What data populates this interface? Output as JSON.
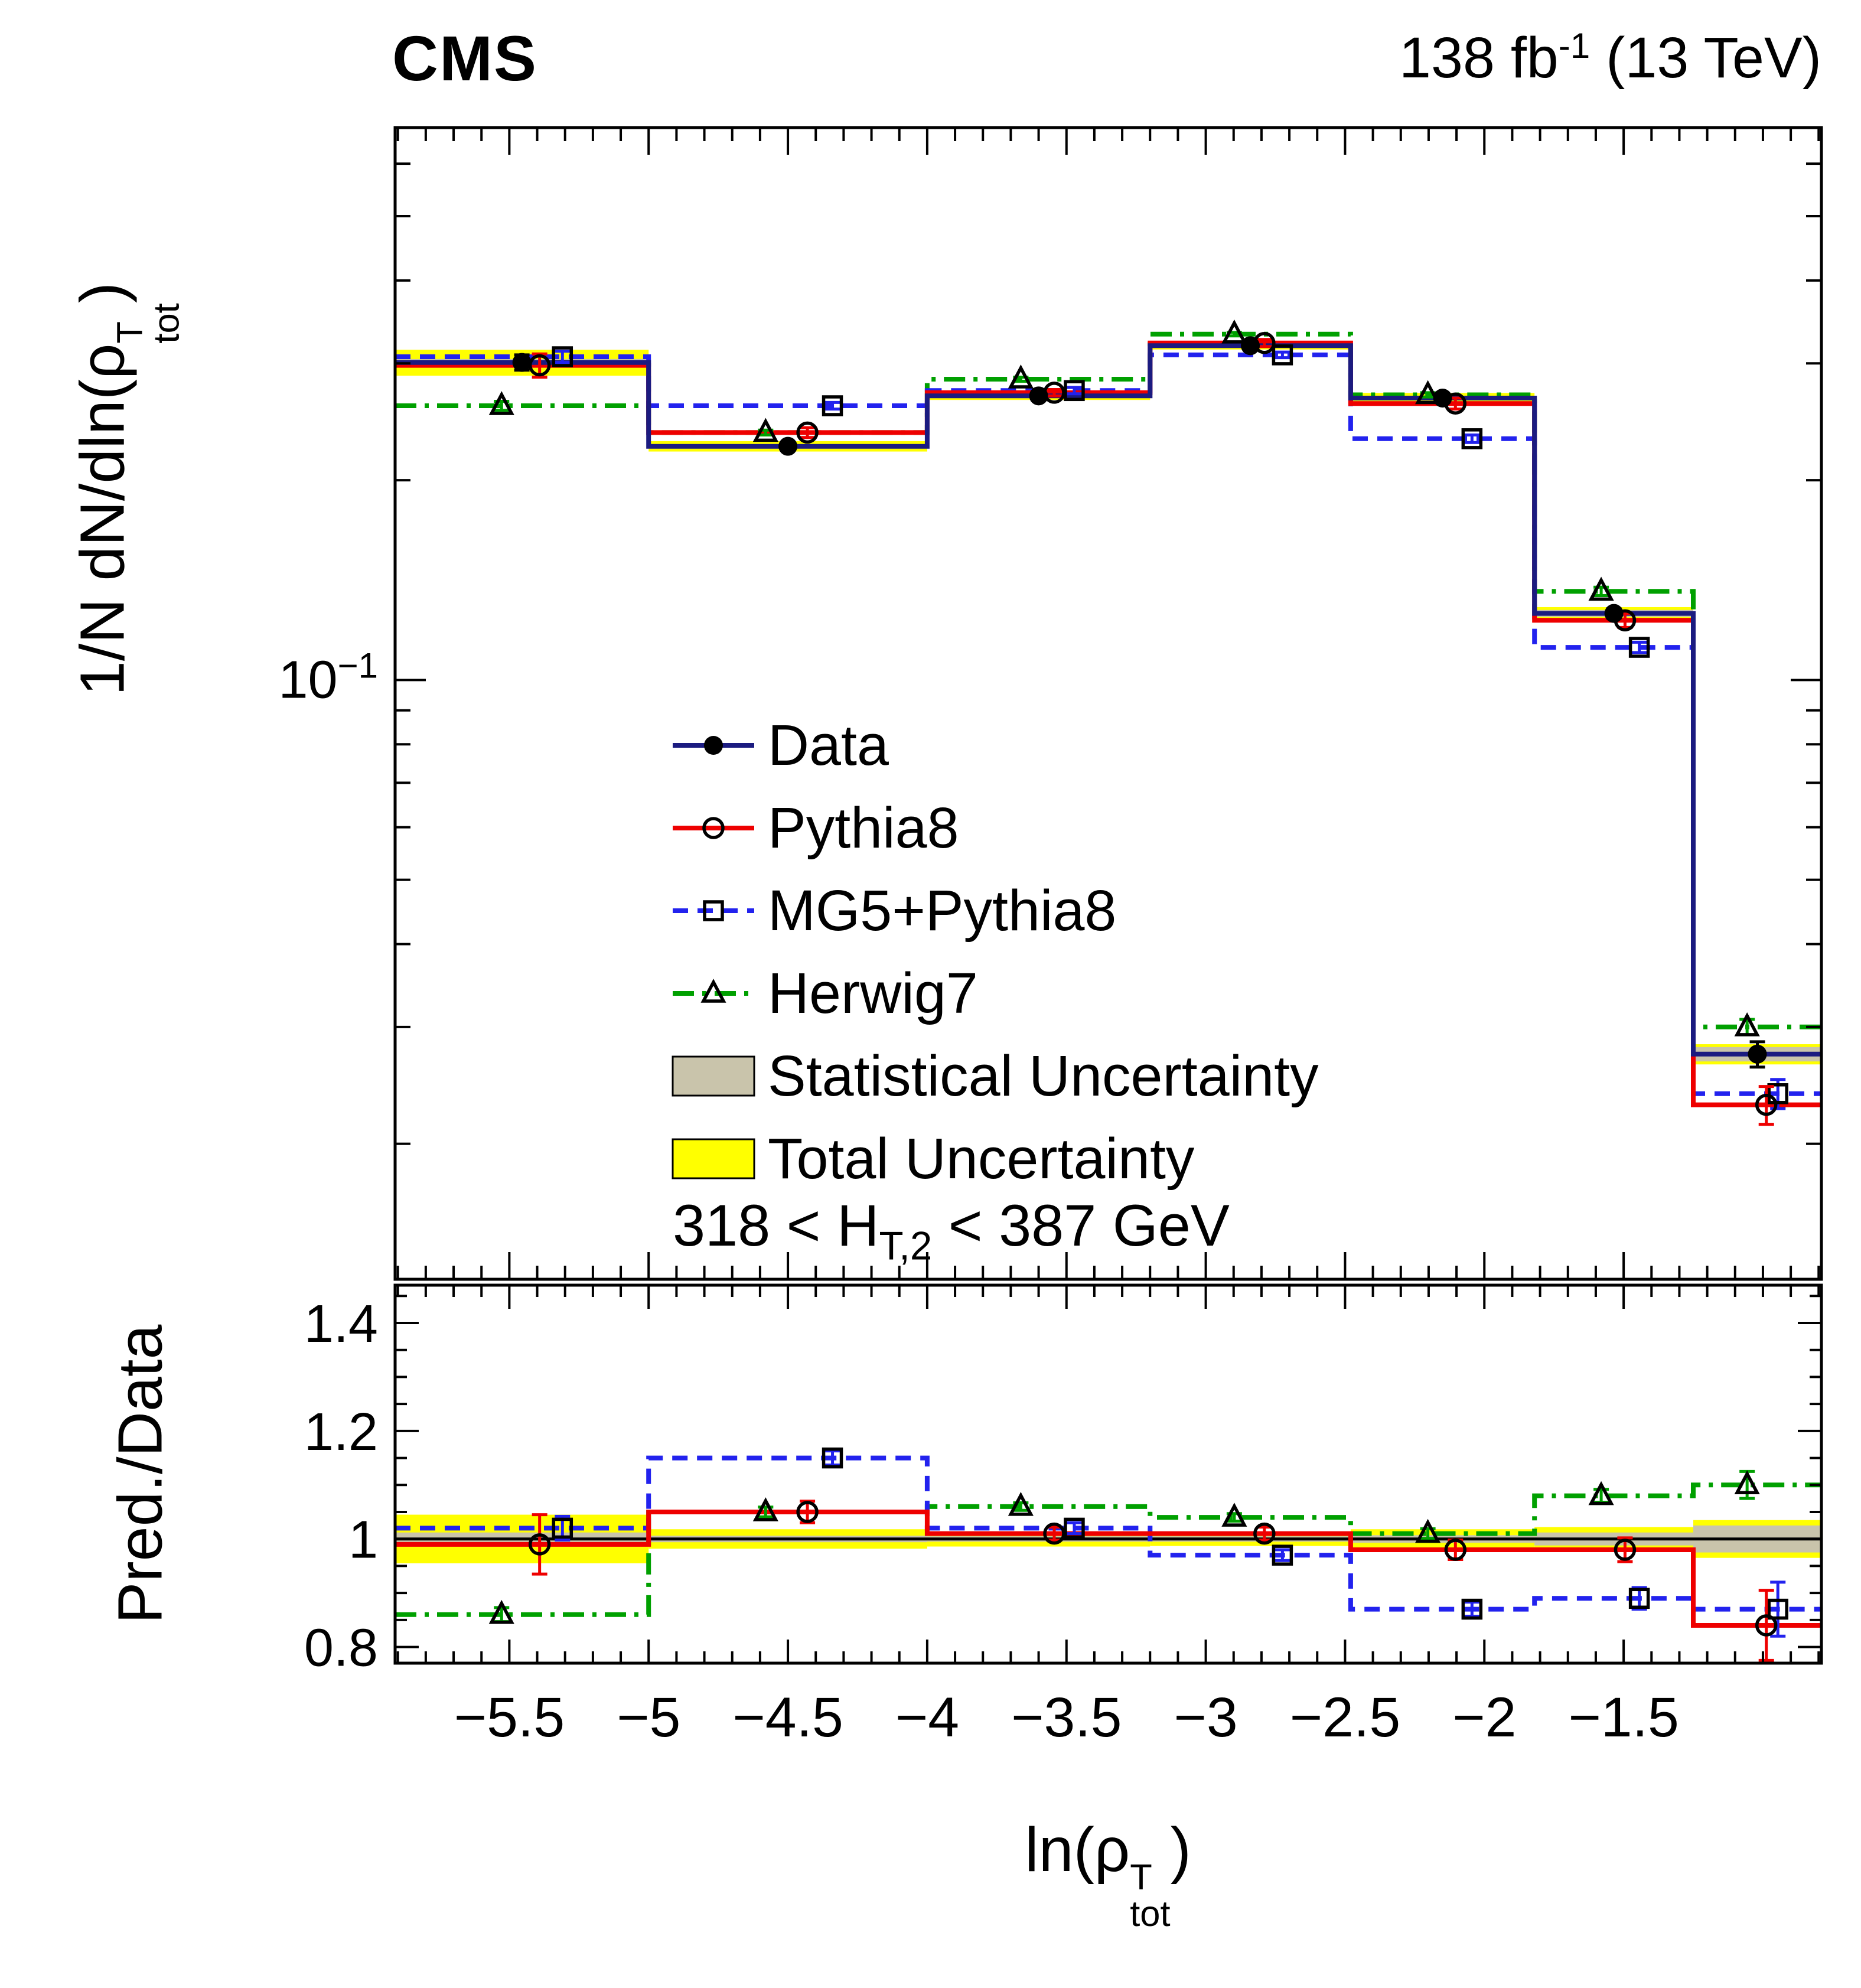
{
  "header": {
    "experiment": "CMS",
    "lumi": "138 fb",
    "lumi_exp": "-1",
    "energy": " (13 TeV)"
  },
  "titles": {
    "y_main": {
      "pre": "1/N dN/dln(ρ",
      "sup": "T",
      "sub": "tot",
      "post": ")"
    },
    "y_ratio": "Pred./Data",
    "x": {
      "pre": "ln(ρ",
      "sup": "T",
      "sub": "tot",
      "post": ")"
    },
    "selection": {
      "pre": "318 < H",
      "sub": "T,2",
      "post": " < 387 GeV"
    }
  },
  "legend": {
    "items": [
      {
        "id": "data",
        "label": "Data",
        "swatch": "line-marker"
      },
      {
        "id": "pythia8",
        "label": "Pythia8",
        "swatch": "line-marker"
      },
      {
        "id": "mg5",
        "label": "MG5+Pythia8",
        "swatch": "line-marker"
      },
      {
        "id": "herwig7",
        "label": "Herwig7",
        "swatch": "line-marker"
      },
      {
        "id": "stat",
        "label": "Statistical Uncertainty",
        "swatch": "box",
        "fill": "stat_band"
      },
      {
        "id": "total",
        "label": "Total Uncertainty",
        "swatch": "box",
        "fill": "total_band"
      }
    ]
  },
  "chart_data": {
    "type": "step-histogram-with-ratio",
    "header_left": "CMS",
    "header_right": "138 fb−1 (13 TeV)",
    "xlabel": "ln(ρ_tot^T)",
    "ylabel": "1/N dN/dln(ρ_tot^T)",
    "ratio_ylabel": "Pred./Data",
    "selection": "318 < H_T,2 < 387 GeV",
    "x": {
      "lim": [
        -5.91,
        -0.79
      ],
      "bin_edges": [
        -5.91,
        -5.0,
        -4.0,
        -3.2,
        -2.48,
        -1.82,
        -1.25,
        -0.79
      ],
      "major_ticks": [
        -5.5,
        -5,
        -4.5,
        -4,
        -3.5,
        -3,
        -2.5,
        -2,
        -1.5
      ],
      "major_tick_labels": [
        "−5.5",
        "−5",
        "−4.5",
        "−4",
        "−3.5",
        "−3",
        "−2.5",
        "−2",
        "−1.5"
      ],
      "minor_tick_step": 0.1
    },
    "main": {
      "ylog": true,
      "ylim": [
        0.0125,
        0.68
      ],
      "decade_tick": {
        "value": 0.1,
        "mantissa": "10",
        "exponent": "−1"
      },
      "minor_ticks": [
        0.02,
        0.03,
        0.04,
        0.05,
        0.06,
        0.07,
        0.08,
        0.09,
        0.2,
        0.3,
        0.4,
        0.5,
        0.6
      ],
      "series": [
        {
          "id": "data",
          "label": "Data",
          "marker": "circle-filled",
          "line_style": "solid",
          "color_key": "data_line",
          "err_color_key": "black",
          "values": [
            0.301,
            0.225,
            0.268,
            0.319,
            0.266,
            0.126,
            0.0273
          ],
          "yerr": [
            0.008,
            0.003,
            0.003,
            0.004,
            0.004,
            0.002,
            0.0012
          ],
          "offset_frac": 0.0
        },
        {
          "id": "pythia8",
          "label": "Pythia8",
          "marker": "circle-open",
          "line_style": "solid",
          "color_key": "pythia8",
          "err_color_key": "pythia8",
          "values": [
            0.298,
            0.236,
            0.271,
            0.322,
            0.261,
            0.123,
            0.0229
          ],
          "yerr": [
            0.012,
            0.004,
            0.003,
            0.004,
            0.005,
            0.003,
            0.0015
          ],
          "offset_frac": 0.07
        },
        {
          "id": "mg5",
          "label": "MG5+Pythia8",
          "marker": "square-open",
          "line_style": "dashed",
          "color_key": "mg5",
          "err_color_key": "mg5",
          "values": [
            0.307,
            0.259,
            0.273,
            0.309,
            0.231,
            0.112,
            0.0238
          ],
          "yerr": [
            0.006,
            0.003,
            0.003,
            0.003,
            0.003,
            0.002,
            0.0012
          ],
          "offset_frac": 0.16
        },
        {
          "id": "herwig7",
          "label": "Herwig7",
          "marker": "triangle-open",
          "line_style": "dashdot",
          "color_key": "herwig7",
          "err_color_key": "herwig7",
          "values": [
            0.259,
            0.236,
            0.284,
            0.332,
            0.269,
            0.136,
            0.03
          ],
          "yerr": [
            0.004,
            0.002,
            0.002,
            0.002,
            0.002,
            0.002,
            0.0008
          ],
          "offset_frac": -0.08
        }
      ]
    },
    "ratio": {
      "ylim": [
        0.77,
        1.47
      ],
      "major_ticks": [
        0.8,
        1.0,
        1.2,
        1.4
      ],
      "major_tick_labels": [
        "0.8",
        "1",
        "1.2",
        "1.4"
      ],
      "minor_tick_step": 0.05,
      "series": [
        {
          "id": "pythia8",
          "values": [
            0.99,
            1.05,
            1.01,
            1.01,
            0.98,
            0.98,
            0.84
          ],
          "yerr": [
            0.055,
            0.02,
            0.012,
            0.012,
            0.018,
            0.022,
            0.065
          ]
        },
        {
          "id": "mg5",
          "values": [
            1.02,
            1.15,
            1.02,
            0.97,
            0.87,
            0.89,
            0.87
          ],
          "yerr": [
            0.022,
            0.013,
            0.01,
            0.01,
            0.013,
            0.02,
            0.05
          ]
        },
        {
          "id": "herwig7",
          "values": [
            0.86,
            1.05,
            1.06,
            1.04,
            1.01,
            1.08,
            1.1
          ],
          "yerr": [
            0.013,
            0.009,
            0.007,
            0.007,
            0.009,
            0.012,
            0.025
          ]
        }
      ]
    },
    "bands": {
      "stat_frac": [
        0.012,
        0.006,
        0.005,
        0.005,
        0.007,
        0.012,
        0.025
      ],
      "total_frac": [
        0.045,
        0.018,
        0.014,
        0.013,
        0.018,
        0.022,
        0.035
      ]
    },
    "colors": {
      "data_line": "#1b1b80",
      "pythia8": "#ee0000",
      "mg5": "#2222ee",
      "herwig7": "#00a000",
      "total_band": "#ffff00",
      "stat_band": "#c9c4ab",
      "marker": "#000000",
      "black": "#000000"
    }
  }
}
